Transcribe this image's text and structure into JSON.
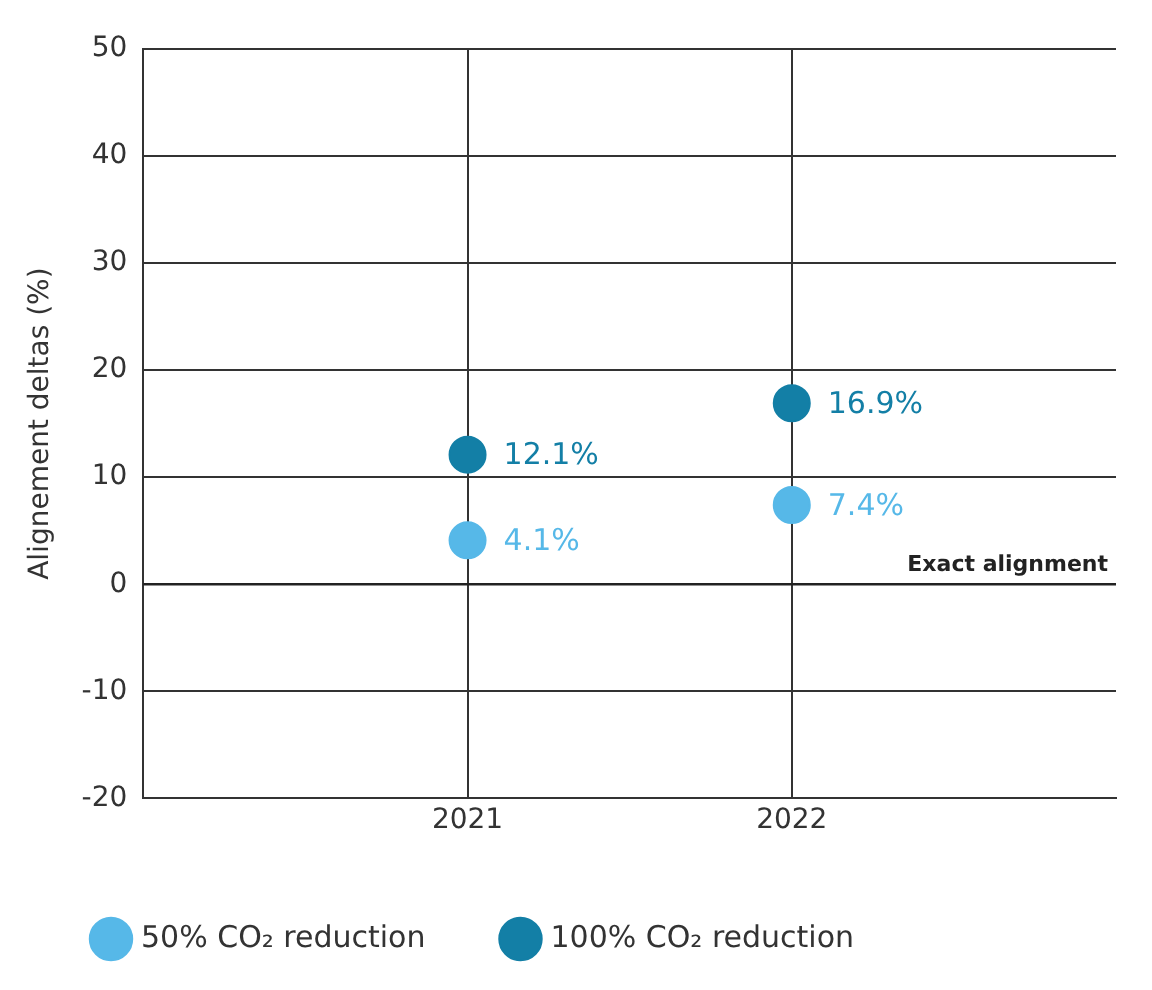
{
  "chart_data": {
    "type": "scatter",
    "ylabel": "Alignement deltas (%)",
    "categories": [
      null,
      "2021",
      "2022",
      null
    ],
    "ylim": [
      -20,
      50
    ],
    "yticks": [
      -20,
      -10,
      0,
      10,
      20,
      30,
      40,
      50
    ],
    "series": [
      {
        "name": "50% CO₂ reduction",
        "color": "#56b8e8",
        "values": [
          null,
          4.1,
          7.4,
          null
        ],
        "value_labels": [
          null,
          "4.1%",
          "7.4%",
          null
        ]
      },
      {
        "name": "100% CO₂ reduction",
        "color": "#137fa6",
        "values": [
          null,
          12.1,
          16.9,
          null
        ],
        "value_labels": [
          null,
          "12.1%",
          "16.9%",
          null
        ]
      }
    ],
    "ref_lines": [
      {
        "axis": "y",
        "value": 0,
        "label": "Exact alignment",
        "color": "#222222"
      }
    ],
    "grid": true,
    "legend": "bottom",
    "marker": "circle"
  }
}
